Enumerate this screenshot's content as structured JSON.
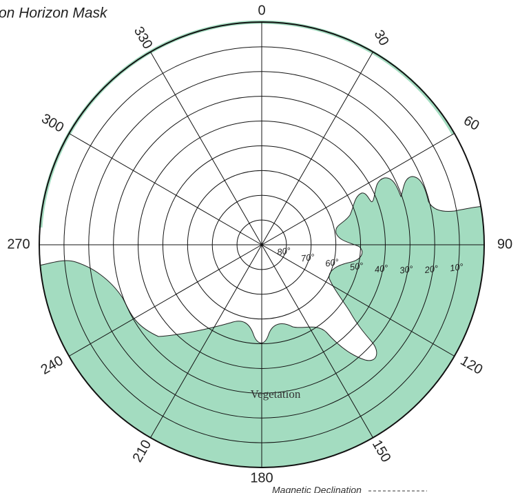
{
  "title": "on Horizon Mask",
  "azimuth_labels": [
    "0",
    "30",
    "60",
    "90",
    "120",
    "150",
    "180",
    "210",
    "240",
    "270",
    "300",
    "330"
  ],
  "elevation_labels": [
    "80°",
    "70°",
    "60°",
    "50°",
    "40°",
    "30°",
    "20°",
    "10°"
  ],
  "annotation": "Vegetation",
  "footer": "Magnetic Declination"
}
